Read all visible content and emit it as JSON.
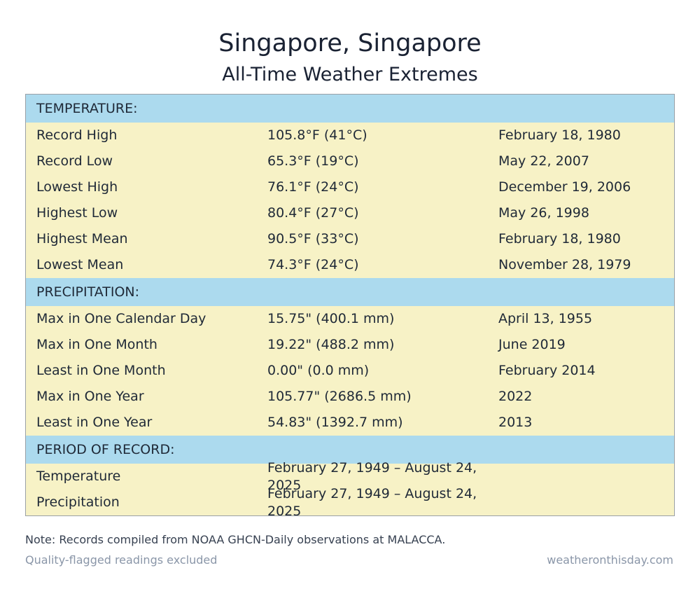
{
  "title": "Singapore, Singapore",
  "subtitle": "All-Time Weather Extremes",
  "colors": {
    "header_band": "#acdaee",
    "row_background": "#f7f2c6",
    "border": "#9aa0a6",
    "muted_text": "#8a96a8"
  },
  "temperature": {
    "heading": "TEMPERATURE:",
    "rows": [
      {
        "label": "Record High",
        "value": "105.8°F (41°C)",
        "date": "February 18, 1980"
      },
      {
        "label": "Record Low",
        "value": "65.3°F (19°C)",
        "date": "May 22, 2007"
      },
      {
        "label": "Lowest High",
        "value": "76.1°F (24°C)",
        "date": "December 19, 2006"
      },
      {
        "label": "Highest Low",
        "value": "80.4°F (27°C)",
        "date": "May 26, 1998"
      },
      {
        "label": "Highest Mean",
        "value": "90.5°F (33°C)",
        "date": "February 18, 1980"
      },
      {
        "label": "Lowest Mean",
        "value": "74.3°F (24°C)",
        "date": "November 28, 1979"
      }
    ]
  },
  "precipitation": {
    "heading": "PRECIPITATION:",
    "rows": [
      {
        "label": "Max in One Calendar Day",
        "value": "15.75\" (400.1 mm)",
        "date": "April 13, 1955"
      },
      {
        "label": "Max in One Month",
        "value": "19.22\" (488.2 mm)",
        "date": "June 2019"
      },
      {
        "label": "Least in One Month",
        "value": "0.00\" (0.0 mm)",
        "date": "February 2014"
      },
      {
        "label": "Max in One Year",
        "value": "105.77\" (2686.5 mm)",
        "date": "2022"
      },
      {
        "label": "Least in One Year",
        "value": "54.83\" (1392.7 mm)",
        "date": "2013"
      }
    ]
  },
  "period_of_record": {
    "heading": "PERIOD OF RECORD:",
    "rows": [
      {
        "label": "Temperature",
        "value": "February 27, 1949 – August 24, 2025"
      },
      {
        "label": "Precipitation",
        "value": "February 27, 1949 – August 24, 2025"
      }
    ]
  },
  "footer": {
    "note": "Note: Records compiled from NOAA GHCN-Daily observations at MALACCA.",
    "quality": "Quality-flagged readings excluded",
    "site": "weatheronthisday.com"
  }
}
